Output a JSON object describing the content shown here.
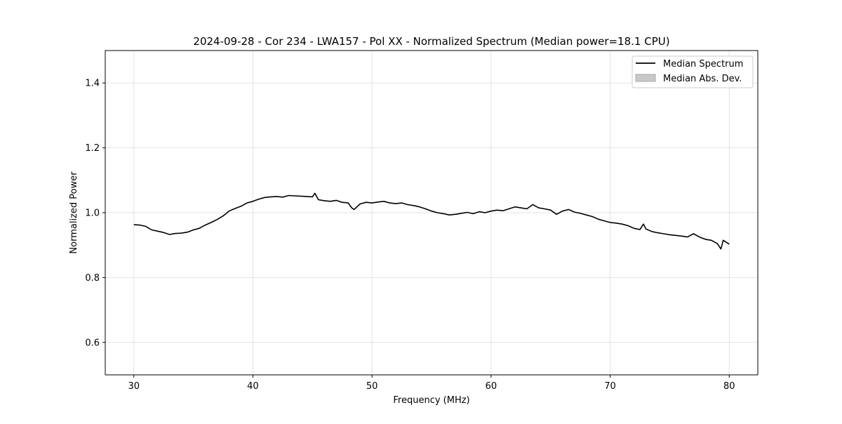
{
  "chart_data": {
    "type": "line",
    "title": "2024-09-28 - Cor 234 - LWA157 - Pol XX - Normalized Spectrum (Median power=18.1 CPU)",
    "xlabel": "Frequency (MHz)",
    "ylabel": "Normalized Power",
    "xlim": [
      27.6,
      82.4
    ],
    "ylim": [
      0.5,
      1.5
    ],
    "xticks": [
      30,
      40,
      50,
      60,
      70,
      80
    ],
    "yticks": [
      0.6,
      0.8,
      1.0,
      1.2,
      1.4
    ],
    "xtick_labels": [
      "30",
      "40",
      "50",
      "60",
      "70",
      "80"
    ],
    "ytick_labels": [
      "0.6",
      "0.8",
      "1.0",
      "1.2",
      "1.4"
    ],
    "grid": true,
    "legend_position": "top-right",
    "legend": [
      {
        "label": "Median Spectrum",
        "kind": "line",
        "color": "#000000"
      },
      {
        "label": "Median Abs. Dev.",
        "kind": "patch",
        "color": "#c8c8c8"
      }
    ],
    "series": [
      {
        "name": "Median Spectrum",
        "color": "#000000",
        "x": [
          30.0,
          30.5,
          31.0,
          31.5,
          32.0,
          32.5,
          33.0,
          33.5,
          34.0,
          34.5,
          35.0,
          35.5,
          36.0,
          36.5,
          37.0,
          37.5,
          38.0,
          38.5,
          39.0,
          39.5,
          40.0,
          40.5,
          41.0,
          41.5,
          42.0,
          42.5,
          43.0,
          43.5,
          44.0,
          44.5,
          45.0,
          45.2,
          45.5,
          46.0,
          46.5,
          47.0,
          47.5,
          48.0,
          48.3,
          48.5,
          49.0,
          49.5,
          50.0,
          50.5,
          51.0,
          51.5,
          52.0,
          52.5,
          53.0,
          53.5,
          54.0,
          54.5,
          55.0,
          55.5,
          56.0,
          56.5,
          57.0,
          57.5,
          58.0,
          58.5,
          59.0,
          59.5,
          60.0,
          60.5,
          61.0,
          61.5,
          62.0,
          62.5,
          63.0,
          63.5,
          64.0,
          64.5,
          65.0,
          65.5,
          66.0,
          66.5,
          67.0,
          67.5,
          68.0,
          68.5,
          69.0,
          69.5,
          70.0,
          70.5,
          71.0,
          71.5,
          72.0,
          72.5,
          72.8,
          73.0,
          73.5,
          74.0,
          74.5,
          75.0,
          75.5,
          76.0,
          76.5,
          77.0,
          77.5,
          78.0,
          78.5,
          79.0,
          79.3,
          79.5,
          80.0
        ],
        "y": [
          0.963,
          0.962,
          0.958,
          0.947,
          0.943,
          0.939,
          0.933,
          0.936,
          0.937,
          0.94,
          0.947,
          0.952,
          0.962,
          0.97,
          0.979,
          0.99,
          1.005,
          1.013,
          1.02,
          1.03,
          1.035,
          1.042,
          1.047,
          1.049,
          1.05,
          1.048,
          1.053,
          1.052,
          1.051,
          1.05,
          1.049,
          1.06,
          1.04,
          1.037,
          1.035,
          1.038,
          1.032,
          1.03,
          1.015,
          1.01,
          1.027,
          1.032,
          1.03,
          1.033,
          1.035,
          1.03,
          1.028,
          1.03,
          1.025,
          1.022,
          1.018,
          1.012,
          1.005,
          1.0,
          0.997,
          0.993,
          0.995,
          0.998,
          1.001,
          0.997,
          1.003,
          1.0,
          1.005,
          1.008,
          1.006,
          1.012,
          1.018,
          1.015,
          1.012,
          1.025,
          1.015,
          1.012,
          1.008,
          0.995,
          1.005,
          1.01,
          1.002,
          0.998,
          0.993,
          0.988,
          0.98,
          0.975,
          0.97,
          0.968,
          0.965,
          0.96,
          0.952,
          0.948,
          0.965,
          0.95,
          0.942,
          0.938,
          0.935,
          0.932,
          0.93,
          0.928,
          0.925,
          0.935,
          0.925,
          0.918,
          0.915,
          0.905,
          0.888,
          0.915,
          0.903
        ]
      }
    ]
  }
}
